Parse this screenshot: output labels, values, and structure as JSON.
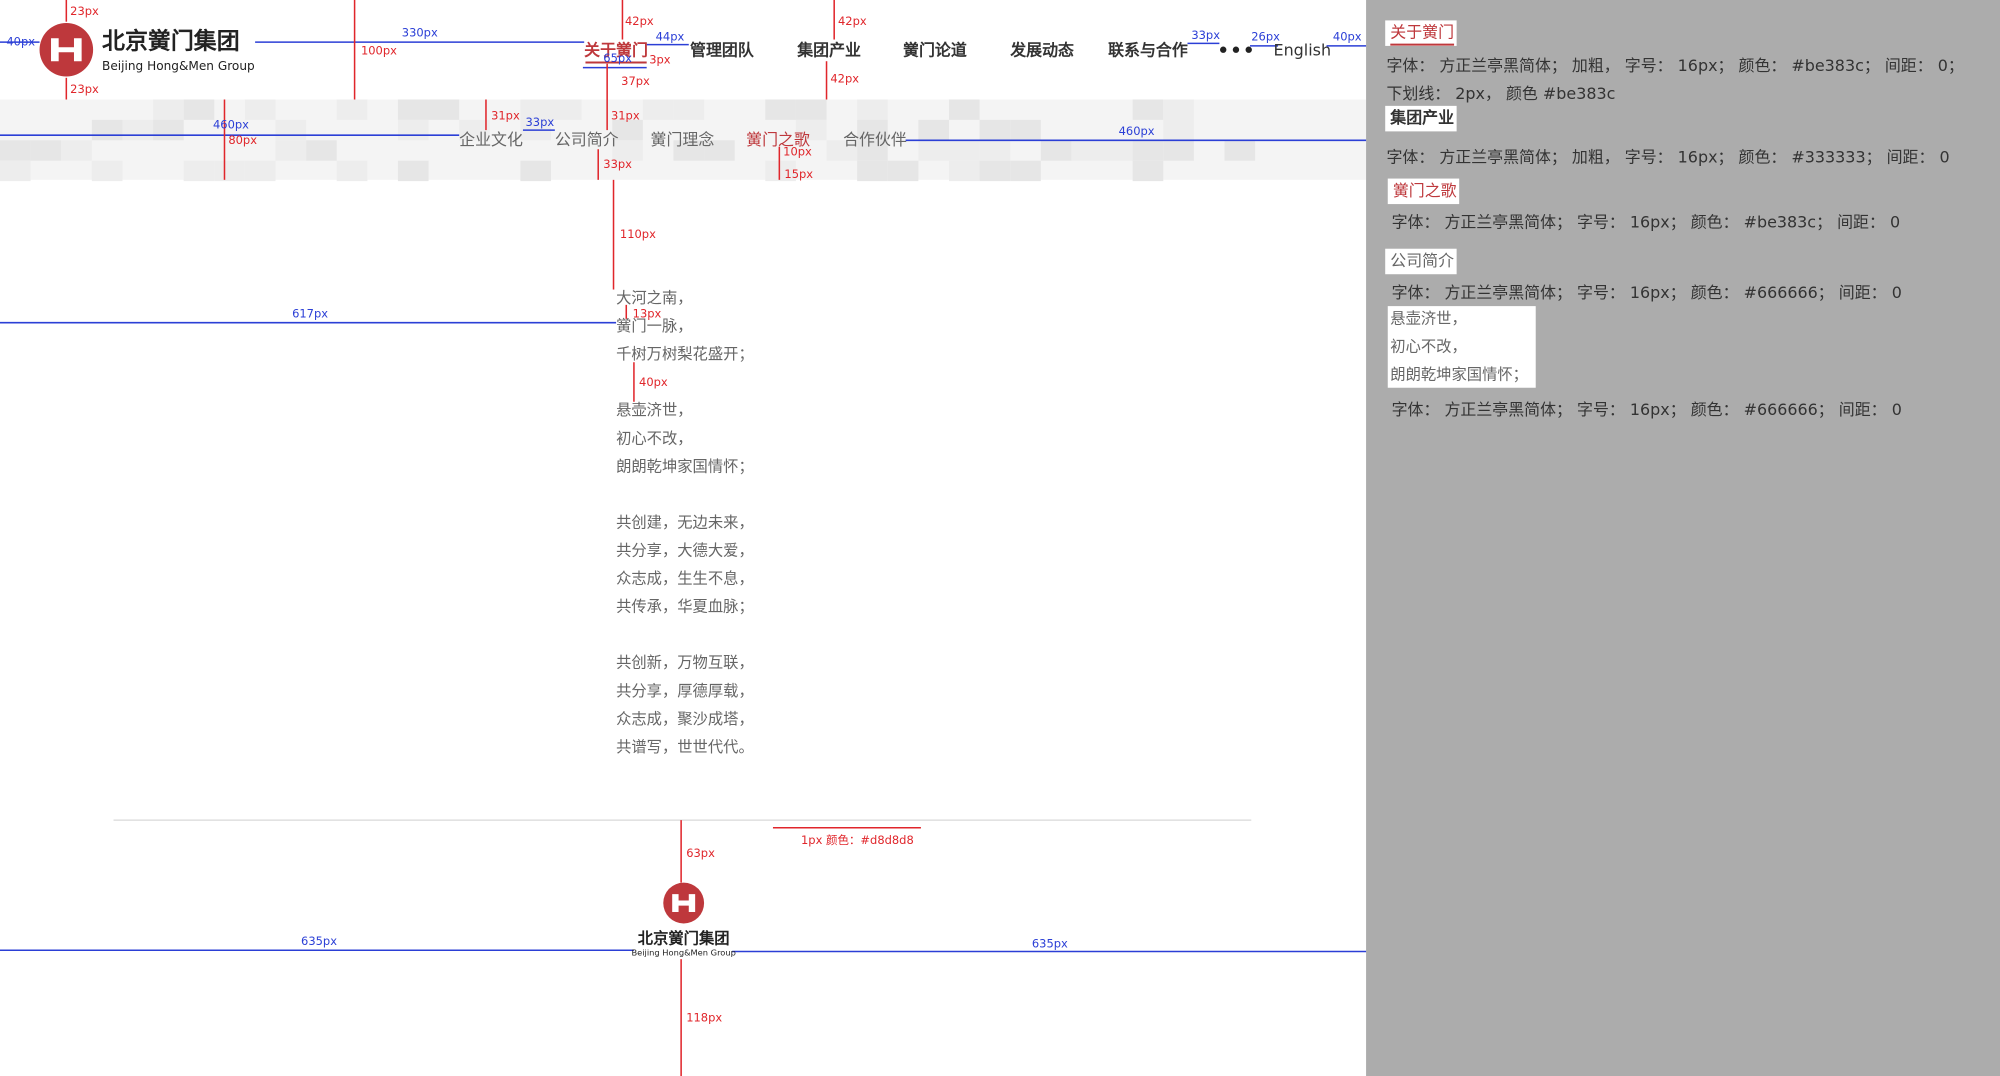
{
  "header": {
    "logo_cn": "北京黉门集团",
    "logo_en": "Beijing Hong&Men Group",
    "nav": [
      "关于黉门",
      "管理团队",
      "集团产业",
      "黉门论道",
      "发展动态",
      "联系与合作",
      "English"
    ]
  },
  "subnav": [
    "企业文化",
    "公司简介",
    "黉门理念",
    "黉门之歌",
    "合作伙伴"
  ],
  "poem": [
    [
      "大河之南，",
      "黉门一脉，",
      "千树万树梨花盛开；"
    ],
    [
      "悬壶济世，",
      "初心不改，",
      "朗朗乾坤家国情怀；"
    ],
    [
      "共创建，无边未来，",
      "共分享，大德大爱，",
      "众志成，生生不息，",
      "共传承，华夏血脉；"
    ],
    [
      "共创新，万物互联，",
      "共分享，厚德厚载，",
      "众志成，聚沙成塔，",
      "共谱写，世世代代。"
    ]
  ],
  "footer": {
    "logo_cn": "北京黉门集团",
    "logo_en": "Beijing Hong&Men Group"
  },
  "annotations": [
    "23px",
    "23px",
    "100px",
    "42px",
    "42px",
    "42px",
    "3px",
    "37px",
    "31px",
    "80px",
    "31px",
    "33px",
    "10px",
    "15px",
    "110px",
    "13px",
    "40px",
    "63px",
    "118px",
    "1px 颜色：#d8d8d8",
    "40px",
    "330px",
    "44px",
    "33px",
    "26px",
    "40px",
    "460px",
    "33px",
    "460px",
    "617px",
    "635px",
    "635px",
    "65px"
  ],
  "spec_panel": [
    {
      "label": "关于黉门",
      "notes": [
        "字体： 方正兰亭黑简体； 加粗， 字号： 16px； 颜色： #be383c； 间距： 0；",
        "下划线： 2px， 颜色 #be383c"
      ]
    },
    {
      "label": "集团产业",
      "notes": [
        "字体： 方正兰亭黑简体； 加粗， 字号： 16px； 颜色： #333333； 间距： 0"
      ]
    },
    {
      "label": "黉门之歌",
      "notes": [
        "字体： 方正兰亭黑简体； 字号： 16px； 颜色： #be383c； 间距： 0"
      ]
    },
    {
      "label": "公司简介",
      "notes": [
        "字体： 方正兰亭黑简体； 字号： 16px； 颜色： #666666； 间距： 0"
      ]
    },
    {
      "lines": [
        "悬壶济世，",
        "初心不改，",
        "朗朗乾坤家国情怀；"
      ],
      "notes": [
        "字体： 方正兰亭黑简体； 字号： 16px； 颜色： #666666； 间距： 0"
      ]
    }
  ]
}
